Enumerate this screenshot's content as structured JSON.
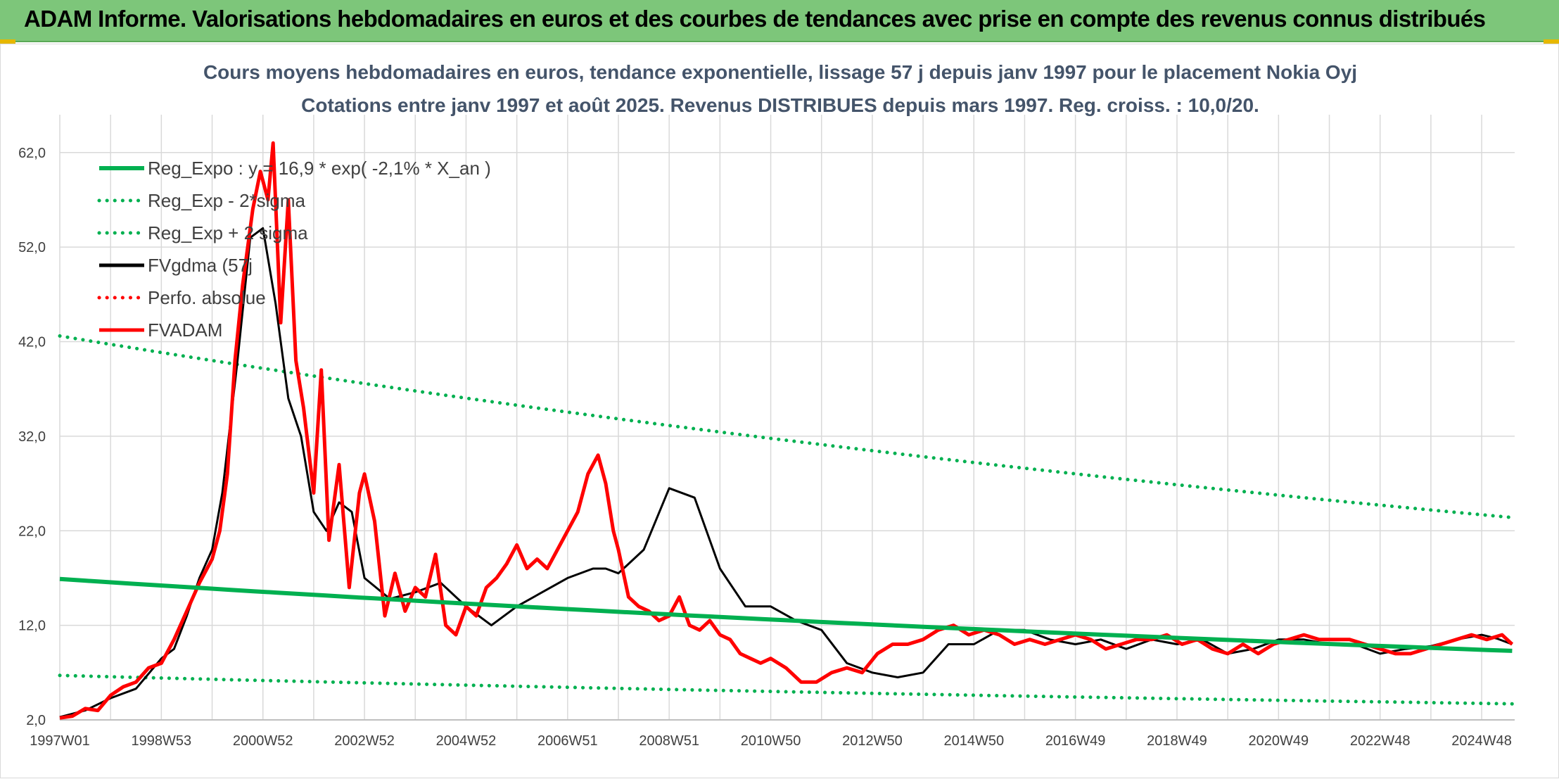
{
  "banner": {
    "title": "ADAM Informe. Valorisations hebdomadaires en euros et des courbes de tendances avec prise en compte des revenus connus distribués"
  },
  "colors": {
    "banner_bg": "#7dc67a",
    "reg": "#00b050",
    "gdma": "#000000",
    "adam": "#ff0000",
    "perfo": "#ff0000",
    "grid": "#d9d9d9"
  },
  "chart_data": {
    "type": "line",
    "title_lines": [
      "Cours moyens hebdomadaires en euros, tendance exponentielle, lissage 57 j depuis janv 1997 pour le placement Nokia Oyj",
      "Cotations entre janv 1997 et août 2025. Revenus DISTRIBUES depuis mars 1997. Reg. croiss. : 10,0/20."
    ],
    "xlabel": "",
    "ylabel": "",
    "x_tick_labels": [
      "1997W01",
      "1998W53",
      "2000W52",
      "2002W52",
      "2004W52",
      "2006W51",
      "2008W51",
      "2010W50",
      "2012W50",
      "2014W50",
      "2016W49",
      "2018W49",
      "2020W49",
      "2022W48",
      "2024W48"
    ],
    "x_tick_years": [
      1997.0,
      1999.0,
      2001.0,
      2003.0,
      2005.0,
      2007.0,
      2009.0,
      2011.0,
      2013.0,
      2015.0,
      2017.0,
      2019.0,
      2021.0,
      2023.0,
      2025.0
    ],
    "x_range": [
      1997.0,
      2025.65
    ],
    "ylim": [
      2.0,
      66.0
    ],
    "y_ticks": [
      2,
      12,
      22,
      32,
      42,
      52,
      62
    ],
    "y_tick_labels": [
      "2,0",
      "12,0",
      "22,0",
      "32,0",
      "42,0",
      "52,0",
      "62,0"
    ],
    "grid": true,
    "legend_position": "top-left",
    "series": [
      {
        "name": "Reg_Expo : y = 16,9 * exp( -2,1% *  X_an )",
        "style": "solid",
        "color": "#00b050",
        "x": [
          1997.0,
          2025.6
        ],
        "y": [
          16.9,
          9.3
        ]
      },
      {
        "name": "Reg_Exp - 2*sigma",
        "style": "dotted",
        "color": "#00b050",
        "x": [
          1997.0,
          2025.6
        ],
        "y": [
          6.7,
          3.7
        ]
      },
      {
        "name": "Reg_Exp + 2 sigma",
        "style": "dotted",
        "color": "#00b050",
        "x": [
          1997.0,
          2025.6
        ],
        "y": [
          42.6,
          23.4
        ]
      },
      {
        "name": "FVgdma (57j",
        "style": "solid",
        "color": "#000000",
        "x": [
          1997.0,
          1997.5,
          1998.0,
          1998.5,
          1999.0,
          1999.25,
          1999.5,
          1999.75,
          2000.0,
          2000.2,
          2000.5,
          2000.75,
          2001.0,
          2001.25,
          2001.5,
          2001.75,
          2002.0,
          2002.25,
          2002.5,
          2002.75,
          2003.0,
          2003.5,
          2004.0,
          2004.5,
          2005.0,
          2005.5,
          2006.0,
          2006.5,
          2007.0,
          2007.5,
          2007.75,
          2008.0,
          2008.5,
          2009.0,
          2009.5,
          2010.0,
          2010.5,
          2011.0,
          2011.5,
          2012.0,
          2012.5,
          2013.0,
          2013.5,
          2014.0,
          2014.5,
          2015.0,
          2015.5,
          2016.0,
          2016.5,
          2017.0,
          2017.5,
          2018.0,
          2018.5,
          2019.0,
          2019.5,
          2020.0,
          2020.5,
          2021.0,
          2021.5,
          2022.0,
          2022.5,
          2023.0,
          2023.5,
          2024.0,
          2024.5,
          2025.0,
          2025.3,
          2025.6
        ],
        "y": [
          2.3,
          3.0,
          4.3,
          5.3,
          8.5,
          9.5,
          13.0,
          17.0,
          20.0,
          26.0,
          40.0,
          53.0,
          54.0,
          46.0,
          36.0,
          32.0,
          24.0,
          22.0,
          25.0,
          24.0,
          17.0,
          14.8,
          15.5,
          16.5,
          14.0,
          12.0,
          14.0,
          15.5,
          17.0,
          18.0,
          18.0,
          17.5,
          20.0,
          26.5,
          25.5,
          18.0,
          14.0,
          14.0,
          12.5,
          11.5,
          8.0,
          7.0,
          6.5,
          7.0,
          10.0,
          10.0,
          11.5,
          11.5,
          10.5,
          10.0,
          10.5,
          9.5,
          10.5,
          10.0,
          10.5,
          9.0,
          9.5,
          10.5,
          10.5,
          10.0,
          10.0,
          9.0,
          9.5,
          9.8,
          10.5,
          11.0,
          10.6,
          10.0
        ]
      },
      {
        "name": "Perfo. absolue",
        "style": "dotted",
        "color": "#ff0000",
        "x": [],
        "y": []
      },
      {
        "name": "FVADAM",
        "style": "solid",
        "color": "#ff0000",
        "x": [
          1997.0,
          1997.25,
          1997.5,
          1997.75,
          1998.0,
          1998.25,
          1998.5,
          1998.75,
          1999.0,
          1999.25,
          1999.5,
          1999.75,
          2000.0,
          2000.15,
          2000.3,
          2000.45,
          2000.6,
          2000.8,
          2000.95,
          2001.1,
          2001.2,
          2001.35,
          2001.5,
          2001.65,
          2001.8,
          2002.0,
          2002.15,
          2002.3,
          2002.5,
          2002.7,
          2002.9,
          2003.0,
          2003.2,
          2003.4,
          2003.6,
          2003.8,
          2004.0,
          2004.2,
          2004.4,
          2004.6,
          2004.8,
          2005.0,
          2005.2,
          2005.4,
          2005.6,
          2005.8,
          2006.0,
          2006.2,
          2006.4,
          2006.6,
          2006.8,
          2007.0,
          2007.2,
          2007.4,
          2007.6,
          2007.75,
          2007.9,
          2008.0,
          2008.2,
          2008.4,
          2008.6,
          2008.8,
          2009.0,
          2009.2,
          2009.4,
          2009.6,
          2009.8,
          2010.0,
          2010.2,
          2010.4,
          2010.6,
          2010.8,
          2011.0,
          2011.3,
          2011.6,
          2011.9,
          2012.2,
          2012.5,
          2012.8,
          2013.1,
          2013.4,
          2013.7,
          2014.0,
          2014.3,
          2014.6,
          2014.9,
          2015.2,
          2015.5,
          2015.8,
          2016.1,
          2016.4,
          2016.7,
          2017.0,
          2017.3,
          2017.6,
          2017.9,
          2018.2,
          2018.5,
          2018.8,
          2019.1,
          2019.4,
          2019.7,
          2020.0,
          2020.3,
          2020.6,
          2020.9,
          2021.2,
          2021.5,
          2021.8,
          2022.1,
          2022.4,
          2022.7,
          2023.0,
          2023.3,
          2023.6,
          2023.9,
          2024.2,
          2024.5,
          2024.8,
          2025.1,
          2025.4,
          2025.6
        ],
        "y": [
          2.2,
          2.4,
          3.2,
          3.0,
          4.6,
          5.5,
          6.0,
          7.5,
          8.0,
          10.5,
          13.5,
          16.5,
          19.0,
          22.0,
          28.0,
          40.0,
          48.0,
          56.0,
          60.0,
          57.0,
          63.0,
          44.0,
          57.0,
          40.0,
          35.0,
          26.0,
          39.0,
          21.0,
          29.0,
          16.0,
          26.0,
          28.0,
          23.0,
          13.0,
          17.5,
          13.5,
          16.0,
          15.0,
          19.5,
          12.0,
          11.0,
          14.0,
          13.0,
          16.0,
          17.0,
          18.5,
          20.5,
          18.0,
          19.0,
          18.0,
          20.0,
          22.0,
          24.0,
          28.0,
          30.0,
          27.0,
          22.0,
          20.0,
          15.0,
          14.0,
          13.5,
          12.5,
          13.0,
          15.0,
          12.0,
          11.5,
          12.5,
          11.0,
          10.5,
          9.0,
          8.5,
          8.0,
          8.5,
          7.5,
          6.0,
          6.0,
          7.0,
          7.5,
          7.0,
          9.0,
          10.0,
          10.0,
          10.5,
          11.5,
          12.0,
          11.0,
          11.5,
          11.0,
          10.0,
          10.5,
          10.0,
          10.5,
          11.0,
          10.5,
          9.5,
          10.0,
          10.5,
          10.5,
          11.0,
          10.0,
          10.5,
          9.5,
          9.0,
          10.0,
          9.0,
          10.0,
          10.5,
          11.0,
          10.5,
          10.5,
          10.5,
          10.0,
          9.5,
          9.0,
          9.0,
          9.5,
          10.0,
          10.5,
          11.0,
          10.5,
          11.0,
          10.0
        ]
      }
    ]
  }
}
